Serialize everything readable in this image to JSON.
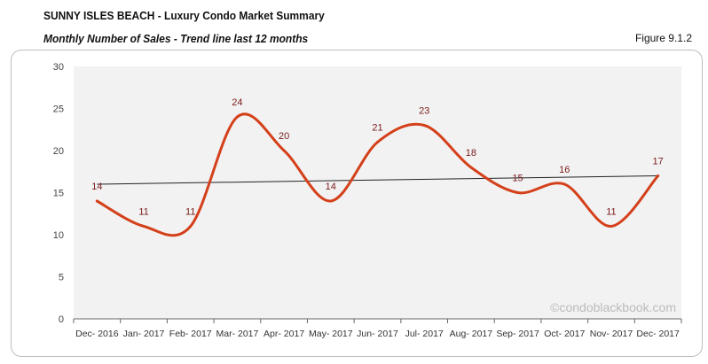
{
  "header": {
    "title": "SUNNY ISLES BEACH - Luxury Condo Market Summary",
    "subtitle": "Monthly Number of Sales - Trend line last 12 months",
    "figure": "Figure 9.1.2"
  },
  "watermark": "©condoblackbook.com",
  "chart_data": {
    "type": "line",
    "categories": [
      "Dec- 2016",
      "Jan- 2017",
      "Feb- 2017",
      "Mar- 2017",
      "Apr- 2017",
      "May- 2017",
      "Jun- 2017",
      "Jul- 2017",
      "Aug- 2017",
      "Sep- 2017",
      "Oct- 2017",
      "Nov- 2017",
      "Dec- 2017"
    ],
    "series": [
      {
        "values": [
          14,
          11,
          11,
          24,
          20,
          14,
          21,
          23,
          18,
          15,
          16,
          11,
          17
        ],
        "color": "#d4401a"
      }
    ],
    "trendline": {
      "start": 16,
      "end": 17,
      "color": "#222222"
    },
    "ylim": [
      0,
      30
    ],
    "yticks": [
      0,
      5,
      10,
      15,
      20,
      25,
      30
    ],
    "grid": false,
    "plot_background": "#f2f2f2",
    "label_color": "#7a1a1a"
  }
}
